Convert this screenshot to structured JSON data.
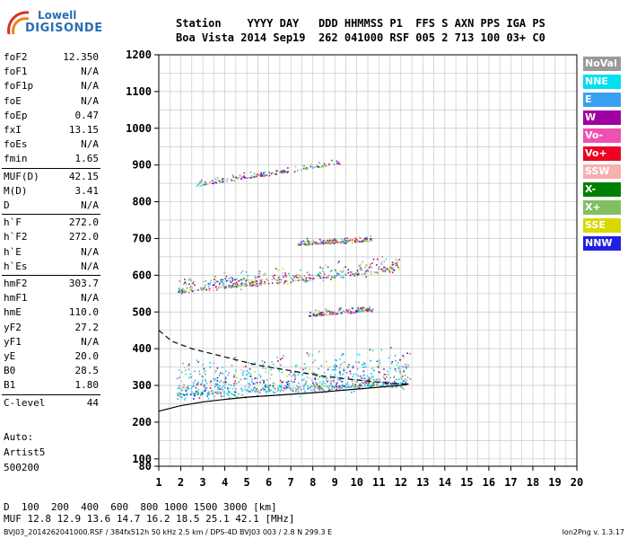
{
  "logo": {
    "line1": "Lowell",
    "line2": "DIGISONDE"
  },
  "header": {
    "row1": "Station    YYYY DAY   DDD HHMMSS P1  FFS S AXN PPS IGA PS",
    "row2": "Boa Vista 2014 Sep19  262 041000 RSF 005 2 713 100 03+ C0"
  },
  "params_group1": [
    {
      "name": "foF2",
      "value": "12.350"
    },
    {
      "name": "foF1",
      "value": "N/A"
    },
    {
      "name": "foF1p",
      "value": "N/A"
    },
    {
      "name": "foE",
      "value": "N/A"
    },
    {
      "name": "foEp",
      "value": "0.47"
    },
    {
      "name": "fxI",
      "value": "13.15"
    },
    {
      "name": "foEs",
      "value": "N/A"
    },
    {
      "name": "fmin",
      "value": "1.65"
    }
  ],
  "params_group2": [
    {
      "name": "MUF(D)",
      "value": "42.15"
    },
    {
      "name": "M(D)",
      "value": "3.41"
    },
    {
      "name": "D",
      "value": "N/A"
    }
  ],
  "params_group3": [
    {
      "name": "h`F",
      "value": "272.0"
    },
    {
      "name": "h`F2",
      "value": "272.0"
    },
    {
      "name": "h`E",
      "value": "N/A"
    },
    {
      "name": "h`Es",
      "value": "N/A"
    }
  ],
  "params_group4": [
    {
      "name": "hmF2",
      "value": "303.7"
    },
    {
      "name": "hmF1",
      "value": "N/A"
    },
    {
      "name": "hmE",
      "value": "110.0"
    },
    {
      "name": "yF2",
      "value": "27.2"
    },
    {
      "name": "yF1",
      "value": "N/A"
    },
    {
      "name": "yE",
      "value": "20.0"
    },
    {
      "name": "B0",
      "value": "28.5"
    },
    {
      "name": "B1",
      "value": "1.80"
    }
  ],
  "params_group5": [
    {
      "name": "C-level",
      "value": "44"
    }
  ],
  "auto": {
    "line1": "Auto:",
    "line2": "Artist5",
    "line3": "500200"
  },
  "legend": [
    {
      "label": "NoVal",
      "color": "#999999"
    },
    {
      "label": "NNE",
      "color": "#00e0f0"
    },
    {
      "label": "E",
      "color": "#3aa0f0"
    },
    {
      "label": "W",
      "color": "#a000a0"
    },
    {
      "label": "Vo-",
      "color": "#f050b0"
    },
    {
      "label": "Vo+",
      "color": "#ee0022"
    },
    {
      "label": "SSW",
      "color": "#f8b0b0"
    },
    {
      "label": "X-",
      "color": "#008000"
    },
    {
      "label": "X+",
      "color": "#80c060"
    },
    {
      "label": "SSE",
      "color": "#d8d800"
    },
    {
      "label": "NNW",
      "color": "#2020e0"
    }
  ],
  "bottom": {
    "d_label": "D",
    "d_values": "  100  200  400  600  800 1000 1500 3000 [km]",
    "muf_label": "MUF",
    "muf_values": " 12.8 12.9 13.6 14.7 16.2 18.5 25.1 42.1 [MHz]"
  },
  "footer": {
    "left": "BVJ03_2014262041000.RSF / 384fx512h 50 kHz 2.5 km / DPS-4D BVJ03 003 / 2.8 N 299.3 E",
    "right": "Ion2Png v. 1.3.17"
  },
  "chart_data": {
    "type": "scatter",
    "title": "",
    "xlabel": "",
    "ylabel": "",
    "xlim": [
      1,
      20
    ],
    "ylim": [
      80,
      1200
    ],
    "x_ticks": [
      1,
      2,
      3,
      4,
      5,
      6,
      7,
      8,
      9,
      10,
      11,
      12,
      13,
      14,
      15,
      16,
      17,
      18,
      19,
      20
    ],
    "y_ticks": [
      80,
      100,
      200,
      300,
      400,
      500,
      600,
      700,
      800,
      900,
      1000,
      1100,
      1200
    ],
    "grid": true,
    "legend_position": "right",
    "traces": [
      {
        "x_start": 1.8,
        "x_end": 12.4,
        "y_start": 275,
        "y_end": 305
      },
      {
        "x_start": 1.8,
        "x_end": 11.9,
        "y_start": 555,
        "y_end": 615
      },
      {
        "x_start": 2.7,
        "x_end": 9.2,
        "y_start": 845,
        "y_end": 905
      },
      {
        "x_start": 7.8,
        "x_end": 10.7,
        "y_start": 490,
        "y_end": 505
      },
      {
        "x_start": 7.3,
        "x_end": 10.7,
        "y_start": 685,
        "y_end": 695
      }
    ],
    "profile_curve": [
      [
        1.0,
        230
      ],
      [
        2.0,
        245
      ],
      [
        3.0,
        255
      ],
      [
        4.0,
        262
      ],
      [
        5.0,
        268
      ],
      [
        6.0,
        272
      ],
      [
        7.0,
        276
      ],
      [
        8.0,
        280
      ],
      [
        9.0,
        285
      ],
      [
        10.0,
        290
      ],
      [
        11.0,
        295
      ],
      [
        12.0,
        300
      ],
      [
        12.35,
        303.7
      ]
    ],
    "dashed_curve": [
      [
        1.0,
        450
      ],
      [
        1.6,
        420
      ],
      [
        2.5,
        400
      ],
      [
        3.5,
        385
      ],
      [
        4.5,
        370
      ],
      [
        5.5,
        355
      ],
      [
        6.5,
        345
      ],
      [
        7.5,
        335
      ],
      [
        8.5,
        325
      ],
      [
        9.5,
        318
      ],
      [
        10.5,
        312
      ],
      [
        11.5,
        306
      ],
      [
        12.35,
        303
      ]
    ]
  }
}
